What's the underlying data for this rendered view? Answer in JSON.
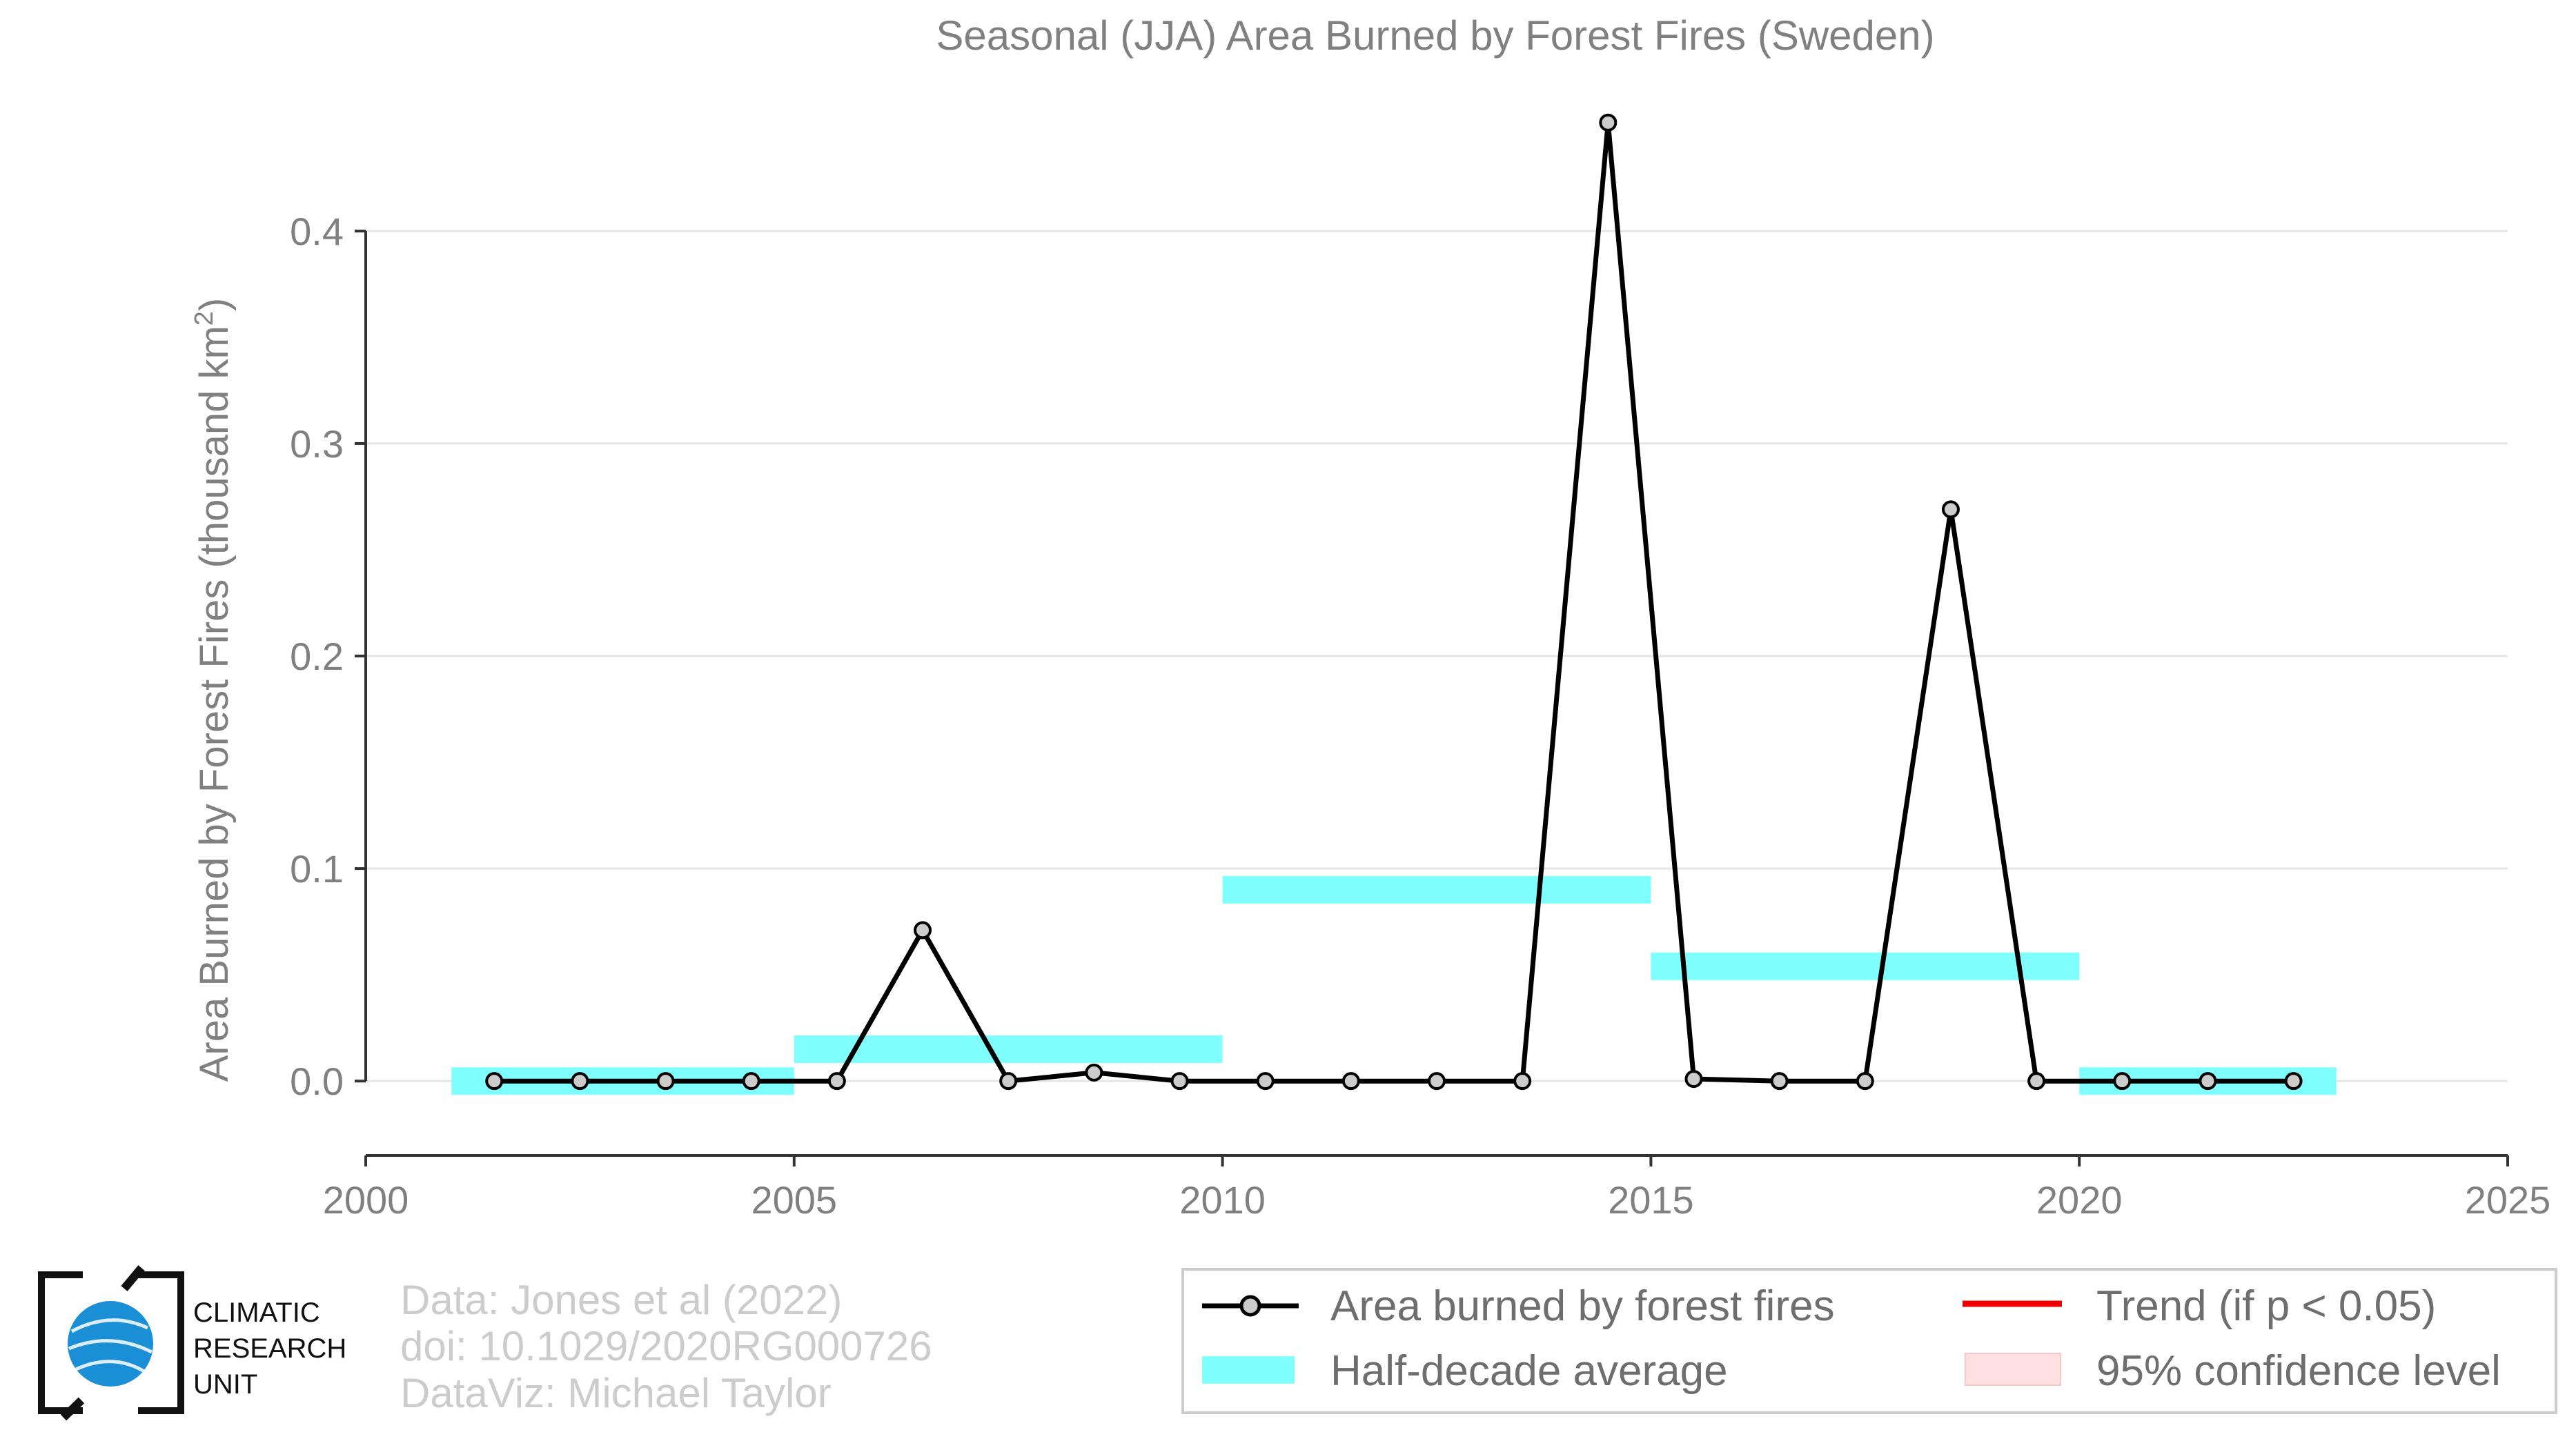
{
  "chart_data": {
    "type": "line",
    "title": "Seasonal (JJA) Area Burned by Forest Fires (Sweden)",
    "xlabel": "",
    "ylabel": "Area Burned by Forest Fires (thousand km",
    "ylabel_sup": "2",
    "ylabel_end": ")",
    "xlim": [
      2000,
      2025
    ],
    "ylim": [
      -0.035,
      0.46
    ],
    "x_ticks": [
      2000,
      2005,
      2010,
      2015,
      2020,
      2025
    ],
    "x_tick_labels": [
      "2000",
      "2005",
      "2010",
      "2015",
      "2020",
      "2025"
    ],
    "y_ticks": [
      0.0,
      0.1,
      0.2,
      0.3,
      0.4
    ],
    "y_tick_labels": [
      "0.0",
      "0.1",
      "0.2",
      "0.3",
      "0.4"
    ],
    "grid": "horizontal",
    "legend_position": "bottom-right",
    "series": [
      {
        "name": "Area burned by forest fires",
        "color": "#000000",
        "marker_fill": "#cccccc",
        "x": [
          2001.5,
          2002.5,
          2003.5,
          2004.5,
          2005.5,
          2006.5,
          2007.5,
          2008.5,
          2009.5,
          2010.5,
          2011.5,
          2012.5,
          2013.5,
          2014.5,
          2015.5,
          2016.5,
          2017.5,
          2018.5,
          2019.5,
          2020.5,
          2021.5,
          2022.5
        ],
        "y": [
          0.0,
          0.0,
          0.0,
          0.0,
          0.0,
          0.071,
          0.0,
          0.004,
          0.0,
          0.0,
          0.0,
          0.0,
          0.0,
          0.451,
          0.001,
          0.0,
          0.0,
          0.269,
          0.0,
          0.0,
          0.0,
          0.0
        ]
      }
    ],
    "half_decade_average": {
      "name": "Half-decade average",
      "color": "#80ffff",
      "segments": [
        {
          "x_start": 2001,
          "x_end": 2005,
          "value": 0.0
        },
        {
          "x_start": 2005,
          "x_end": 2010,
          "value": 0.015
        },
        {
          "x_start": 2010,
          "x_end": 2015,
          "value": 0.09
        },
        {
          "x_start": 2015,
          "x_end": 2020,
          "value": 0.054
        },
        {
          "x_start": 2020,
          "x_end": 2023,
          "value": 0.0
        }
      ]
    },
    "legend": [
      {
        "label": "Area burned by forest fires",
        "kind": "line-marker",
        "color": "#000000"
      },
      {
        "label": "Half-decade average",
        "kind": "band",
        "color": "#80ffff"
      },
      {
        "label": "Trend (if p < 0.05)",
        "kind": "line",
        "color": "#ee0000"
      },
      {
        "label": "95% confidence level",
        "kind": "fill",
        "color": "#ffe0e0"
      }
    ]
  },
  "credits": {
    "line1": "Data: Jones et al (2022)",
    "line2": "doi: 10.1029/2020RG000726",
    "line3": "DataViz: Michael Taylor"
  },
  "logo": {
    "line1": "CLIMATIC",
    "line2": "RESEARCH",
    "line3": "UNIT"
  }
}
